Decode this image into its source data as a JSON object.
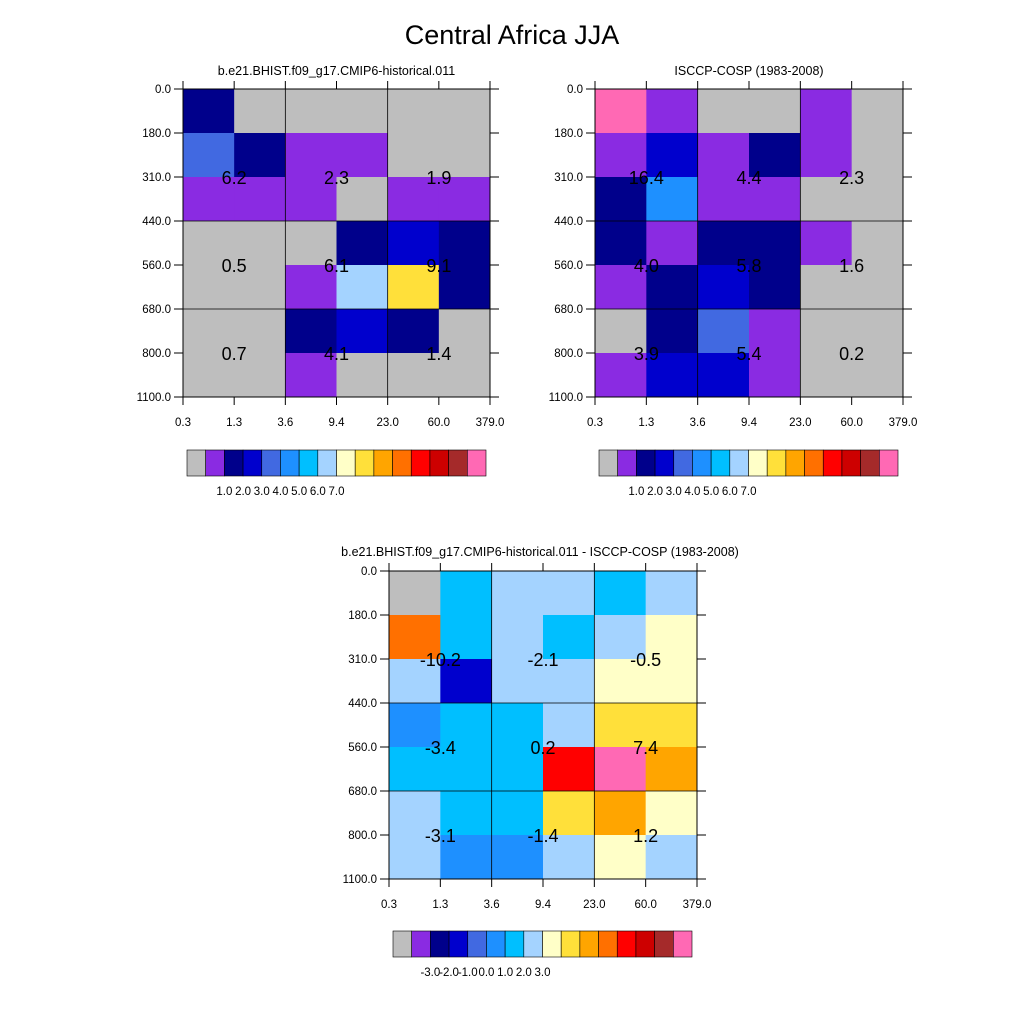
{
  "title": "Central Africa JJA",
  "chart_data": [
    {
      "type": "heatmap",
      "title": "b.e21.BHIST.f09_g17.CMIP6-historical.011",
      "x_tick_labels": [
        "0.3",
        "1.3",
        "3.6",
        "9.4",
        "23.0",
        "60.0",
        "379.0"
      ],
      "y_tick_labels": [
        "0.0",
        "180.0",
        "310.0",
        "440.0",
        "560.0",
        "680.0",
        "800.0",
        "1100.0"
      ],
      "cell_colors": [
        [
          "#00008b",
          "#bebebe",
          "#bebebe",
          "#bebebe",
          "#bebebe",
          "#bebebe"
        ],
        [
          "#4169e1",
          "#00008b",
          "#8a2be2",
          "#8a2be2",
          "#bebebe",
          "#bebebe"
        ],
        [
          "#8a2be2",
          "#8a2be2",
          "#8a2be2",
          "#bebebe",
          "#8a2be2",
          "#8a2be2"
        ],
        [
          "#bebebe",
          "#bebebe",
          "#bebebe",
          "#00008b",
          "#0000cd",
          "#00008b"
        ],
        [
          "#bebebe",
          "#bebebe",
          "#8a2be2",
          "#a4d3ff",
          "#ffe03a",
          "#00008b"
        ],
        [
          "#bebebe",
          "#bebebe",
          "#00008b",
          "#0000cd",
          "#00008b",
          "#bebebe"
        ],
        [
          "#bebebe",
          "#bebebe",
          "#8a2be2",
          "#bebebe",
          "#bebebe",
          "#bebebe"
        ]
      ],
      "annotations": [
        {
          "col": 0,
          "row": 1,
          "text": "6.2"
        },
        {
          "col": 2,
          "row": 1,
          "text": "2.3"
        },
        {
          "col": 4,
          "row": 1,
          "text": "1.9"
        },
        {
          "col": 0,
          "row": 3,
          "text": "0.5"
        },
        {
          "col": 2,
          "row": 3,
          "text": "6.1"
        },
        {
          "col": 4,
          "row": 3,
          "text": "9.1"
        },
        {
          "col": 0,
          "row": 5,
          "text": "0.7"
        },
        {
          "col": 2,
          "row": 5,
          "text": "4.1"
        },
        {
          "col": 4,
          "row": 5,
          "text": "1.4"
        }
      ],
      "colorbar": {
        "colors": [
          "#bebebe",
          "#8a2be2",
          "#00008b",
          "#0000cd",
          "#4169e1",
          "#1e90ff",
          "#00bfff",
          "#a4d3ff",
          "#ffffc8",
          "#ffe03a",
          "#ffa500",
          "#ff7000",
          "#ff0000",
          "#cd0000",
          "#a52a2a",
          "#ff69b4"
        ],
        "labels": [
          "1.0",
          "2.0",
          "3.0",
          "4.0",
          "5.0",
          "6.0",
          "7.0"
        ],
        "label_start_boundary": 2
      }
    },
    {
      "type": "heatmap",
      "title": "ISCCP-COSP (1983-2008)",
      "x_tick_labels": [
        "0.3",
        "1.3",
        "3.6",
        "9.4",
        "23.0",
        "60.0",
        "379.0"
      ],
      "y_tick_labels": [
        "0.0",
        "180.0",
        "310.0",
        "440.0",
        "560.0",
        "680.0",
        "800.0",
        "1100.0"
      ],
      "cell_colors": [
        [
          "#ff69b4",
          "#8a2be2",
          "#bebebe",
          "#bebebe",
          "#8a2be2",
          "#bebebe"
        ],
        [
          "#8a2be2",
          "#0000cd",
          "#8a2be2",
          "#00008b",
          "#8a2be2",
          "#bebebe"
        ],
        [
          "#00008b",
          "#1e90ff",
          "#8a2be2",
          "#8a2be2",
          "#bebebe",
          "#bebebe"
        ],
        [
          "#00008b",
          "#8a2be2",
          "#00008b",
          "#00008b",
          "#8a2be2",
          "#bebebe"
        ],
        [
          "#8a2be2",
          "#00008b",
          "#0000cd",
          "#00008b",
          "#bebebe",
          "#bebebe"
        ],
        [
          "#bebebe",
          "#00008b",
          "#4169e1",
          "#8a2be2",
          "#bebebe",
          "#bebebe"
        ],
        [
          "#8a2be2",
          "#0000cd",
          "#0000cd",
          "#8a2be2",
          "#bebebe",
          "#bebebe"
        ]
      ],
      "annotations": [
        {
          "col": 0,
          "row": 1,
          "text": "16.4"
        },
        {
          "col": 2,
          "row": 1,
          "text": "4.4"
        },
        {
          "col": 4,
          "row": 1,
          "text": "2.3"
        },
        {
          "col": 0,
          "row": 3,
          "text": "4.0"
        },
        {
          "col": 2,
          "row": 3,
          "text": "5.8"
        },
        {
          "col": 4,
          "row": 3,
          "text": "1.6"
        },
        {
          "col": 0,
          "row": 5,
          "text": "3.9"
        },
        {
          "col": 2,
          "row": 5,
          "text": "5.4"
        },
        {
          "col": 4,
          "row": 5,
          "text": "0.2"
        }
      ],
      "colorbar": {
        "colors": [
          "#bebebe",
          "#8a2be2",
          "#00008b",
          "#0000cd",
          "#4169e1",
          "#1e90ff",
          "#00bfff",
          "#a4d3ff",
          "#ffffc8",
          "#ffe03a",
          "#ffa500",
          "#ff7000",
          "#ff0000",
          "#cd0000",
          "#a52a2a",
          "#ff69b4"
        ],
        "labels": [
          "1.0",
          "2.0",
          "3.0",
          "4.0",
          "5.0",
          "6.0",
          "7.0"
        ],
        "label_start_boundary": 2
      }
    },
    {
      "type": "heatmap",
      "title": "b.e21.BHIST.f09_g17.CMIP6-historical.011 - ISCCP-COSP (1983-2008)",
      "x_tick_labels": [
        "0.3",
        "1.3",
        "3.6",
        "9.4",
        "23.0",
        "60.0",
        "379.0"
      ],
      "y_tick_labels": [
        "0.0",
        "180.0",
        "310.0",
        "440.0",
        "560.0",
        "680.0",
        "800.0",
        "1100.0"
      ],
      "cell_colors": [
        [
          "#bebebe",
          "#00bfff",
          "#a4d3ff",
          "#a4d3ff",
          "#00bfff",
          "#a4d3ff"
        ],
        [
          "#ff7000",
          "#00bfff",
          "#a4d3ff",
          "#00bfff",
          "#a4d3ff",
          "#ffffc8"
        ],
        [
          "#a4d3ff",
          "#0000cd",
          "#a4d3ff",
          "#a4d3ff",
          "#ffffc8",
          "#ffffc8"
        ],
        [
          "#1e90ff",
          "#00bfff",
          "#00bfff",
          "#a4d3ff",
          "#ffe03a",
          "#ffe03a"
        ],
        [
          "#00bfff",
          "#00bfff",
          "#00bfff",
          "#ff0000",
          "#ff69b4",
          "#ffa500"
        ],
        [
          "#a4d3ff",
          "#00bfff",
          "#00bfff",
          "#ffe03a",
          "#ffa500",
          "#ffffc8"
        ],
        [
          "#a4d3ff",
          "#1e90ff",
          "#1e90ff",
          "#a4d3ff",
          "#ffffc8",
          "#a4d3ff"
        ]
      ],
      "annotations": [
        {
          "col": 0,
          "row": 1,
          "text": "-10.2"
        },
        {
          "col": 2,
          "row": 1,
          "text": "-2.1"
        },
        {
          "col": 4,
          "row": 1,
          "text": "-0.5"
        },
        {
          "col": 0,
          "row": 3,
          "text": "-3.4"
        },
        {
          "col": 2,
          "row": 3,
          "text": "0.2"
        },
        {
          "col": 4,
          "row": 3,
          "text": "7.4"
        },
        {
          "col": 0,
          "row": 5,
          "text": "-3.1"
        },
        {
          "col": 2,
          "row": 5,
          "text": "-1.4"
        },
        {
          "col": 4,
          "row": 5,
          "text": "1.2"
        }
      ],
      "colorbar": {
        "colors": [
          "#bebebe",
          "#8a2be2",
          "#00008b",
          "#0000cd",
          "#4169e1",
          "#1e90ff",
          "#00bfff",
          "#a4d3ff",
          "#ffffc8",
          "#ffe03a",
          "#ffa500",
          "#ff7000",
          "#ff0000",
          "#cd0000",
          "#a52a2a",
          "#ff69b4"
        ],
        "labels": [
          "-3.0",
          "-2.0",
          "-1.0",
          "0.0",
          "1.0",
          "2.0",
          "3.0"
        ],
        "label_start_boundary": 2
      }
    }
  ]
}
